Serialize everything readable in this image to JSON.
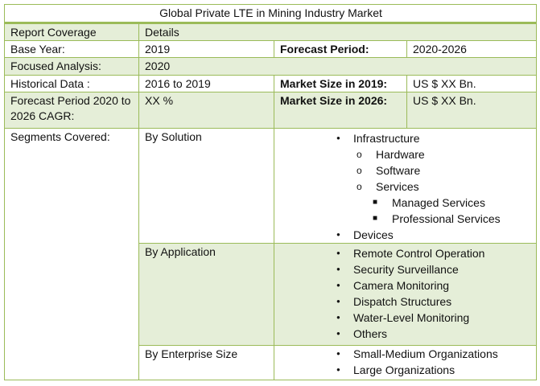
{
  "title": "Global Private LTE in Mining Industry Market",
  "colors": {
    "border": "#9bbb59",
    "shade": "#e5eed8"
  },
  "header": {
    "col1": "Report Coverage",
    "col2": "Details"
  },
  "base_year": {
    "label": "Base Year:",
    "value": "2019",
    "label2": "Forecast Period:",
    "value2": "2020-2026"
  },
  "focused": {
    "label": "Focused Analysis:",
    "value": "2020"
  },
  "historical": {
    "label": "Historical Data :",
    "value": "2016 to 2019",
    "label2": "Market Size in 2019:",
    "value2": "US $ XX Bn."
  },
  "cagr": {
    "label": "Forecast Period 2020 to 2026 CAGR:",
    "value": "XX %",
    "label2": "Market Size in 2026:",
    "value2": "US $ XX Bn."
  },
  "segments": {
    "label": "Segments Covered:",
    "solution": {
      "label": "By Solution",
      "items": [
        {
          "level": 1,
          "text": "Infrastructure"
        },
        {
          "level": 2,
          "text": "Hardware"
        },
        {
          "level": 2,
          "text": "Software"
        },
        {
          "level": 2,
          "text": "Services"
        },
        {
          "level": 3,
          "text": "Managed Services"
        },
        {
          "level": 3,
          "text": "Professional Services"
        },
        {
          "level": 1,
          "text": "Devices"
        }
      ]
    },
    "application": {
      "label": "By Application",
      "items": [
        {
          "level": 1,
          "text": "Remote Control Operation"
        },
        {
          "level": 1,
          "text": "Security Surveillance"
        },
        {
          "level": 1,
          "text": "Camera Monitoring"
        },
        {
          "level": 1,
          "text": "Dispatch Structures"
        },
        {
          "level": 1,
          "text": "Water-Level Monitoring"
        },
        {
          "level": 1,
          "text": "Others"
        }
      ]
    },
    "enterprise": {
      "label": "By Enterprise Size",
      "items": [
        {
          "level": 1,
          "text": "Small-Medium Organizations"
        },
        {
          "level": 1,
          "text": "Large Organizations"
        }
      ]
    }
  }
}
